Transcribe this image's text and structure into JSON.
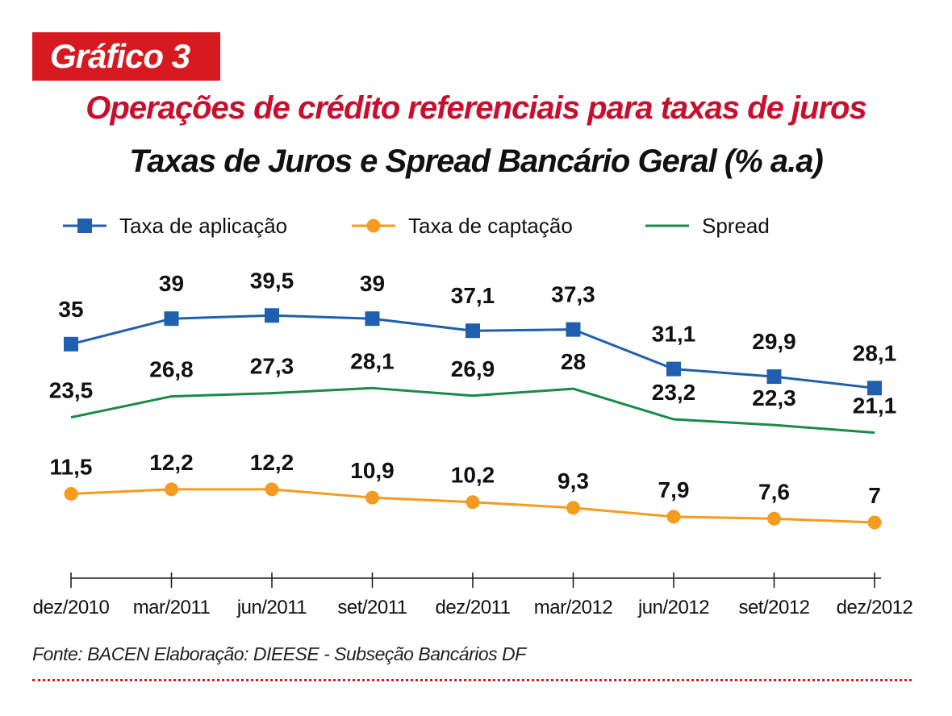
{
  "header": {
    "badge": "Gráfico 3",
    "title": "Operações de crédito referenciais para taxas de juros",
    "subtitle": "Taxas de Juros e Spread Bancário Geral (% a.a)"
  },
  "footer": {
    "source": "Fonte: BACEN  Elaboração: DIEESE - Subseção Bancários DF"
  },
  "chart_data": {
    "type": "line",
    "title": "Taxas de Juros e Spread Bancário Geral (% a.a)",
    "categories": [
      "dez/2010",
      "mar/2011",
      "jun/2011",
      "set/2011",
      "dez/2011",
      "mar/2012",
      "jun/2012",
      "set/2012",
      "dez/2012"
    ],
    "ylim": [
      0,
      45
    ],
    "grid": false,
    "legend_position": "top",
    "series": [
      {
        "name": "Taxa de aplicação",
        "color": "#1f5fad",
        "marker": "square",
        "values": [
          35,
          39,
          39.5,
          39,
          37.1,
          37.3,
          31.1,
          29.9,
          28.1
        ],
        "labels": [
          "35",
          "39",
          "39,5",
          "39",
          "37,1",
          "37,3",
          "31,1",
          "29,9",
          "28,1"
        ]
      },
      {
        "name": "Taxa de captação",
        "color": "#f39c1f",
        "marker": "circle",
        "values": [
          11.5,
          12.2,
          12.2,
          10.9,
          10.2,
          9.3,
          7.9,
          7.6,
          7
        ],
        "labels": [
          "11,5",
          "12,2",
          "12,2",
          "10,9",
          "10,2",
          "9,3",
          "7,9",
          "7,6",
          "7"
        ]
      },
      {
        "name": "Spread",
        "color": "#1a8a4a",
        "marker": "none",
        "values": [
          23.5,
          26.8,
          27.3,
          28.1,
          26.9,
          28,
          23.2,
          22.3,
          21.1
        ],
        "labels": [
          "23,5",
          "26,8",
          "27,3",
          "28,1",
          "26,9",
          "28",
          "23,2",
          "22,3",
          "21,1"
        ]
      }
    ]
  }
}
